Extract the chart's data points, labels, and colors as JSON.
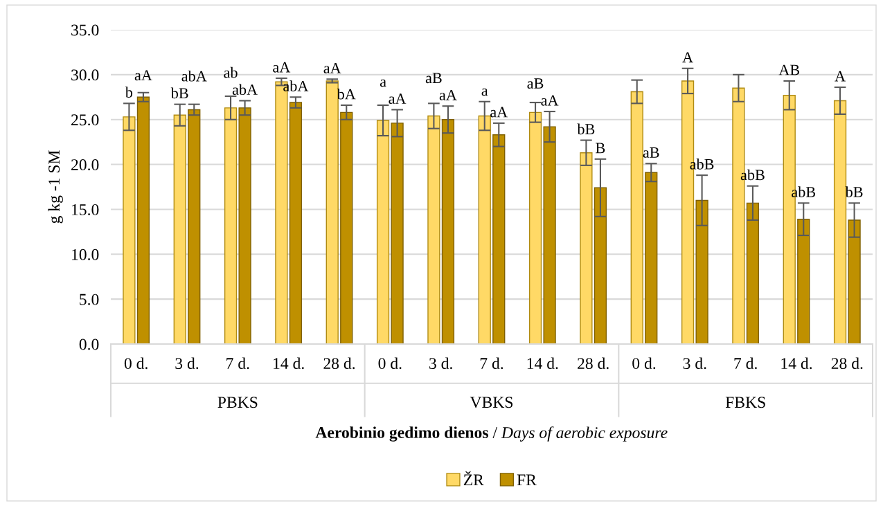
{
  "chart_data": {
    "type": "bar",
    "categories": [
      "0 d.",
      "3 d.",
      "7 d.",
      "14 d.",
      "28 d.",
      "0 d.",
      "3 d.",
      "7 d.",
      "14 d.",
      "28 d.",
      "0 d.",
      "3 d.",
      "7 d.",
      "14 d.",
      "28 d."
    ],
    "series": [
      {
        "name": "ŽR",
        "color": "#ffd966",
        "values": [
          25.3,
          25.5,
          26.3,
          29.2,
          29.3,
          24.9,
          25.4,
          25.4,
          25.8,
          21.3,
          28.1,
          29.3,
          28.5,
          27.7,
          27.1
        ],
        "errors": [
          1.5,
          1.2,
          1.3,
          0.4,
          0.2,
          1.7,
          1.4,
          1.6,
          1.1,
          1.4,
          1.3,
          1.4,
          1.5,
          1.6,
          1.5
        ],
        "value_labels": [
          "b",
          "bB",
          "ab",
          "aA",
          "aA",
          "a",
          "aB",
          "a",
          "aB",
          "bB",
          null,
          "A",
          null,
          "AB",
          "A"
        ]
      },
      {
        "name": "FR",
        "color": "#bf9000",
        "values": [
          27.5,
          26.1,
          26.3,
          26.9,
          25.8,
          24.6,
          25.0,
          23.3,
          24.2,
          17.4,
          19.1,
          16.0,
          15.7,
          13.9,
          13.8
        ],
        "errors": [
          0.5,
          0.6,
          0.8,
          0.6,
          0.8,
          1.5,
          1.5,
          1.3,
          1.7,
          3.2,
          1.0,
          2.8,
          1.9,
          1.8,
          1.9
        ],
        "value_labels": [
          "aA",
          "abA",
          "abA",
          "abA",
          "bA",
          "aA",
          "aA",
          "aA",
          "aA",
          "B",
          "aB",
          "abB",
          "abB",
          "abB",
          "bB"
        ]
      }
    ],
    "ylim": [
      0,
      35
    ],
    "yticks": [
      {
        "value": 0,
        "label": "0.0"
      },
      {
        "value": 5,
        "label": "5.0"
      },
      {
        "value": 10,
        "label": "10.0"
      },
      {
        "value": 15,
        "label": "15.0"
      },
      {
        "value": 20,
        "label": "20.0"
      },
      {
        "value": 25,
        "label": "25.0"
      },
      {
        "value": 30,
        "label": "30.0"
      },
      {
        "value": 35,
        "label": "35.0"
      }
    ],
    "ylabel": "g kg -1 SM",
    "xlabel": "Aerobinio gedimo dienos / Days of aerobic exposure",
    "annotations": [
      "PBKS",
      "VBKS",
      "FBKS"
    ],
    "grid": "y",
    "legend": "bottom"
  }
}
